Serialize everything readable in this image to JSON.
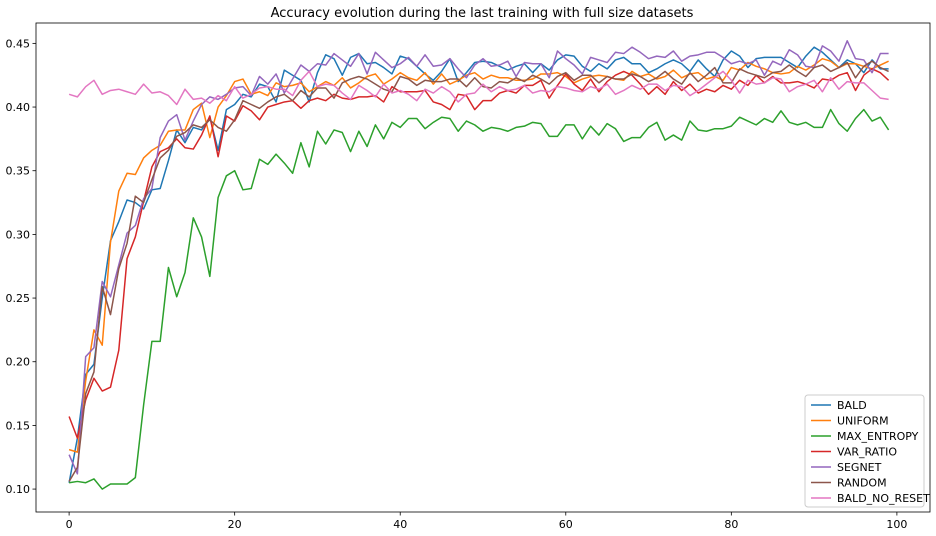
{
  "chart_data": {
    "type": "line",
    "title": "Accuracy evolution during the last training with full size datasets",
    "xlabel": "",
    "ylabel": "",
    "xlim": [
      -4,
      104
    ],
    "ylim": [
      0.082,
      0.466
    ],
    "xticks": [
      0,
      20,
      40,
      60,
      80,
      100
    ],
    "yticks": [
      0.1,
      0.15,
      0.2,
      0.25,
      0.3,
      0.35,
      0.4,
      0.45
    ],
    "xtick_labels": [
      "0",
      "20",
      "40",
      "60",
      "80",
      "100"
    ],
    "ytick_labels": [
      "0.10",
      "0.15",
      "0.20",
      "0.25",
      "0.30",
      "0.35",
      "0.40",
      "0.45"
    ],
    "grid": false,
    "legend_position": "lower-right",
    "x": [
      0,
      1,
      2,
      3,
      4,
      5,
      6,
      7,
      8,
      9,
      10,
      11,
      12,
      13,
      14,
      15,
      16,
      17,
      18,
      19,
      20,
      21,
      22,
      23,
      24,
      25,
      26,
      27,
      28,
      29,
      30,
      31,
      32,
      33,
      34,
      35,
      36,
      37,
      38,
      39,
      40,
      41,
      42,
      43,
      44,
      45,
      46,
      47,
      48,
      49,
      50,
      51,
      52,
      53,
      54,
      55,
      56,
      57,
      58,
      59,
      60,
      61,
      62,
      63,
      64,
      65,
      66,
      67,
      68,
      69,
      70,
      71,
      72,
      73,
      74,
      75,
      76,
      77,
      78,
      79,
      80,
      81,
      82,
      83,
      84,
      85,
      86,
      87,
      88,
      89,
      90,
      91,
      92,
      93,
      94,
      95,
      96,
      97,
      98,
      99
    ],
    "series": [
      {
        "name": "BALD",
        "color": "#1f77b4",
        "values": [
          0.105,
          0.14,
          0.19,
          0.198,
          0.25,
          0.295,
          0.31,
          0.327,
          0.325,
          0.32,
          0.335,
          0.336,
          0.358,
          0.382,
          0.372,
          0.384,
          0.382,
          0.392,
          0.366,
          0.398,
          0.402,
          0.41,
          0.408,
          0.418,
          0.416,
          0.404,
          0.429,
          0.425,
          0.421,
          0.404,
          0.427,
          0.441,
          0.438,
          0.425,
          0.439,
          0.442,
          0.434,
          0.435,
          0.431,
          0.426,
          0.44,
          0.438,
          0.432,
          0.426,
          0.421,
          0.428,
          0.438,
          0.42,
          0.427,
          0.435,
          0.436,
          0.435,
          0.432,
          0.429,
          0.432,
          0.434,
          0.427,
          0.434,
          0.429,
          0.437,
          0.441,
          0.44,
          0.432,
          0.428,
          0.434,
          0.43,
          0.437,
          0.439,
          0.434,
          0.434,
          0.427,
          0.43,
          0.434,
          0.437,
          0.434,
          0.428,
          0.437,
          0.43,
          0.424,
          0.437,
          0.444,
          0.44,
          0.431,
          0.438,
          0.439,
          0.439,
          0.439,
          0.435,
          0.431,
          0.44,
          0.447,
          0.443,
          0.437,
          0.431,
          0.437,
          0.434,
          0.427,
          0.437,
          0.43,
          0.43
        ]
      },
      {
        "name": "UNIFORM",
        "color": "#ff7f0e",
        "values": [
          0.131,
          0.129,
          0.185,
          0.225,
          0.213,
          0.294,
          0.334,
          0.348,
          0.347,
          0.36,
          0.366,
          0.37,
          0.381,
          0.382,
          0.382,
          0.398,
          0.403,
          0.376,
          0.4,
          0.409,
          0.42,
          0.422,
          0.41,
          0.412,
          0.409,
          0.419,
          0.416,
          0.417,
          0.419,
          0.412,
          0.416,
          0.42,
          0.417,
          0.423,
          0.415,
          0.419,
          0.424,
          0.426,
          0.418,
          0.422,
          0.427,
          0.423,
          0.421,
          0.427,
          0.418,
          0.426,
          0.418,
          0.421,
          0.425,
          0.427,
          0.422,
          0.425,
          0.423,
          0.423,
          0.421,
          0.421,
          0.422,
          0.426,
          0.426,
          0.427,
          0.424,
          0.419,
          0.422,
          0.424,
          0.425,
          0.424,
          0.422,
          0.421,
          0.428,
          0.424,
          0.426,
          0.422,
          0.424,
          0.429,
          0.423,
          0.426,
          0.427,
          0.422,
          0.424,
          0.421,
          0.431,
          0.429,
          0.435,
          0.432,
          0.43,
          0.427,
          0.426,
          0.427,
          0.432,
          0.429,
          0.433,
          0.438,
          0.436,
          0.431,
          0.434,
          0.434,
          0.432,
          0.43,
          0.433,
          0.436
        ]
      },
      {
        "name": "MAX_ENTROPY",
        "color": "#2ca02c",
        "values": [
          0.105,
          0.106,
          0.105,
          0.108,
          0.1,
          0.104,
          0.104,
          0.104,
          0.109,
          0.166,
          0.216,
          0.216,
          0.274,
          0.251,
          0.27,
          0.313,
          0.298,
          0.267,
          0.329,
          0.346,
          0.35,
          0.335,
          0.336,
          0.359,
          0.355,
          0.363,
          0.356,
          0.348,
          0.372,
          0.353,
          0.381,
          0.371,
          0.382,
          0.38,
          0.365,
          0.381,
          0.369,
          0.386,
          0.375,
          0.388,
          0.384,
          0.391,
          0.391,
          0.383,
          0.388,
          0.392,
          0.391,
          0.381,
          0.389,
          0.386,
          0.381,
          0.384,
          0.383,
          0.381,
          0.384,
          0.385,
          0.388,
          0.387,
          0.377,
          0.377,
          0.386,
          0.386,
          0.375,
          0.385,
          0.378,
          0.387,
          0.383,
          0.373,
          0.376,
          0.376,
          0.384,
          0.388,
          0.374,
          0.378,
          0.374,
          0.389,
          0.382,
          0.381,
          0.383,
          0.383,
          0.385,
          0.392,
          0.389,
          0.386,
          0.391,
          0.388,
          0.397,
          0.388,
          0.386,
          0.388,
          0.384,
          0.384,
          0.398,
          0.387,
          0.381,
          0.391,
          0.398,
          0.389,
          0.392,
          0.382
        ]
      },
      {
        "name": "VAR_RATIO",
        "color": "#d62728",
        "values": [
          0.157,
          0.14,
          0.17,
          0.187,
          0.177,
          0.18,
          0.209,
          0.281,
          0.298,
          0.326,
          0.353,
          0.365,
          0.368,
          0.375,
          0.368,
          0.367,
          0.378,
          0.393,
          0.361,
          0.393,
          0.389,
          0.401,
          0.397,
          0.39,
          0.4,
          0.402,
          0.404,
          0.405,
          0.399,
          0.405,
          0.407,
          0.405,
          0.41,
          0.407,
          0.406,
          0.408,
          0.408,
          0.409,
          0.404,
          0.416,
          0.412,
          0.412,
          0.412,
          0.413,
          0.404,
          0.402,
          0.398,
          0.41,
          0.409,
          0.398,
          0.405,
          0.405,
          0.411,
          0.413,
          0.411,
          0.417,
          0.417,
          0.421,
          0.407,
          0.417,
          0.426,
          0.418,
          0.413,
          0.422,
          0.412,
          0.42,
          0.425,
          0.428,
          0.425,
          0.418,
          0.41,
          0.416,
          0.41,
          0.42,
          0.413,
          0.418,
          0.411,
          0.414,
          0.412,
          0.417,
          0.414,
          0.421,
          0.417,
          0.425,
          0.419,
          0.424,
          0.419,
          0.419,
          0.42,
          0.418,
          0.415,
          0.422,
          0.421,
          0.425,
          0.427,
          0.413,
          0.425,
          0.43,
          0.427,
          0.421
        ]
      },
      {
        "name": "SEGNET",
        "color": "#9467bd",
        "values": [
          0.127,
          0.112,
          0.204,
          0.211,
          0.263,
          0.251,
          0.276,
          0.301,
          0.307,
          0.328,
          0.336,
          0.376,
          0.389,
          0.394,
          0.374,
          0.389,
          0.402,
          0.408,
          0.406,
          0.41,
          0.415,
          0.416,
          0.409,
          0.424,
          0.418,
          0.426,
          0.411,
          0.422,
          0.433,
          0.428,
          0.434,
          0.433,
          0.442,
          0.437,
          0.432,
          0.442,
          0.426,
          0.443,
          0.437,
          0.431,
          0.434,
          0.439,
          0.432,
          0.441,
          0.432,
          0.433,
          0.438,
          0.43,
          0.423,
          0.433,
          0.438,
          0.432,
          0.433,
          0.436,
          0.424,
          0.435,
          0.434,
          0.434,
          0.423,
          0.444,
          0.438,
          0.433,
          0.426,
          0.439,
          0.437,
          0.435,
          0.443,
          0.442,
          0.447,
          0.443,
          0.438,
          0.44,
          0.439,
          0.444,
          0.436,
          0.44,
          0.441,
          0.443,
          0.443,
          0.439,
          0.434,
          0.436,
          0.434,
          0.437,
          0.425,
          0.436,
          0.433,
          0.445,
          0.441,
          0.432,
          0.431,
          0.448,
          0.444,
          0.436,
          0.452,
          0.438,
          0.437,
          0.427,
          0.442,
          0.442
        ]
      },
      {
        "name": "RANDOM",
        "color": "#8c564b",
        "values": [
          0.106,
          0.117,
          0.175,
          0.192,
          0.259,
          0.237,
          0.273,
          0.293,
          0.33,
          0.325,
          0.343,
          0.36,
          0.366,
          0.377,
          0.38,
          0.386,
          0.384,
          0.39,
          0.384,
          0.381,
          0.39,
          0.405,
          0.402,
          0.399,
          0.404,
          0.408,
          0.41,
          0.405,
          0.413,
          0.408,
          0.415,
          0.415,
          0.407,
          0.419,
          0.422,
          0.424,
          0.422,
          0.418,
          0.414,
          0.412,
          0.424,
          0.422,
          0.417,
          0.421,
          0.42,
          0.42,
          0.422,
          0.422,
          0.416,
          0.423,
          0.416,
          0.415,
          0.42,
          0.419,
          0.423,
          0.42,
          0.425,
          0.422,
          0.418,
          0.424,
          0.427,
          0.421,
          0.425,
          0.425,
          0.419,
          0.424,
          0.422,
          0.422,
          0.426,
          0.424,
          0.42,
          0.423,
          0.428,
          0.422,
          0.418,
          0.427,
          0.42,
          0.425,
          0.431,
          0.419,
          0.419,
          0.43,
          0.427,
          0.425,
          0.423,
          0.427,
          0.428,
          0.433,
          0.428,
          0.424,
          0.431,
          0.433,
          0.428,
          0.431,
          0.435,
          0.423,
          0.432,
          0.436,
          0.431,
          0.428
        ]
      },
      {
        "name": "BALD_NO_RESET",
        "color": "#e377c2",
        "values": [
          0.41,
          0.408,
          0.416,
          0.421,
          0.41,
          0.413,
          0.414,
          0.412,
          0.41,
          0.418,
          0.411,
          0.412,
          0.409,
          0.402,
          0.414,
          0.406,
          0.407,
          0.403,
          0.409,
          0.405,
          0.416,
          0.407,
          0.41,
          0.415,
          0.416,
          0.414,
          0.414,
          0.409,
          0.421,
          0.428,
          0.416,
          0.418,
          0.417,
          0.411,
          0.406,
          0.417,
          0.413,
          0.408,
          0.418,
          0.411,
          0.413,
          0.41,
          0.405,
          0.414,
          0.411,
          0.416,
          0.412,
          0.404,
          0.41,
          0.411,
          0.418,
          0.412,
          0.416,
          0.413,
          0.414,
          0.417,
          0.411,
          0.413,
          0.412,
          0.416,
          0.415,
          0.413,
          0.412,
          0.416,
          0.414,
          0.418,
          0.41,
          0.413,
          0.417,
          0.414,
          0.418,
          0.418,
          0.413,
          0.417,
          0.416,
          0.409,
          0.413,
          0.418,
          0.423,
          0.428,
          0.421,
          0.411,
          0.421,
          0.418,
          0.419,
          0.423,
          0.422,
          0.412,
          0.416,
          0.418,
          0.421,
          0.412,
          0.423,
          0.414,
          0.42,
          0.419,
          0.419,
          0.413,
          0.407,
          0.406
        ]
      }
    ]
  }
}
